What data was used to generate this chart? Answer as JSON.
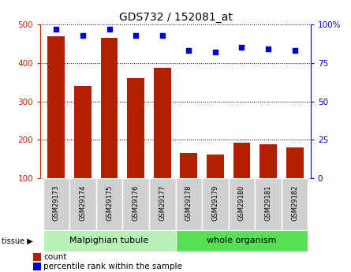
{
  "title": "GDS732 / 152081_at",
  "samples": [
    "GSM29173",
    "GSM29174",
    "GSM29175",
    "GSM29176",
    "GSM29177",
    "GSM29178",
    "GSM29179",
    "GSM29180",
    "GSM29181",
    "GSM29182"
  ],
  "counts": [
    470,
    340,
    465,
    360,
    387,
    165,
    162,
    192,
    188,
    180
  ],
  "percentile_ranks": [
    97,
    93,
    97,
    93,
    93,
    83,
    82,
    85,
    84,
    83
  ],
  "tissue_groups": [
    {
      "label": "Malpighian tubule",
      "start": 0,
      "end": 5,
      "color": "#b8f0b8"
    },
    {
      "label": "whole organism",
      "start": 5,
      "end": 10,
      "color": "#55e055"
    }
  ],
  "bar_color": "#b22000",
  "dot_color": "#0000cc",
  "ylim_left": [
    100,
    500
  ],
  "ylim_right": [
    0,
    100
  ],
  "yticks_left": [
    100,
    200,
    300,
    400,
    500
  ],
  "yticks_right": [
    0,
    25,
    50,
    75,
    100
  ],
  "yticklabels_right": [
    "0",
    "25",
    "50",
    "75",
    "100%"
  ],
  "axis_color_left": "#cc2200",
  "axis_color_right": "#0000cc",
  "legend_count_label": "count",
  "legend_pct_label": "percentile rank within the sample",
  "tissue_label": "tissue"
}
